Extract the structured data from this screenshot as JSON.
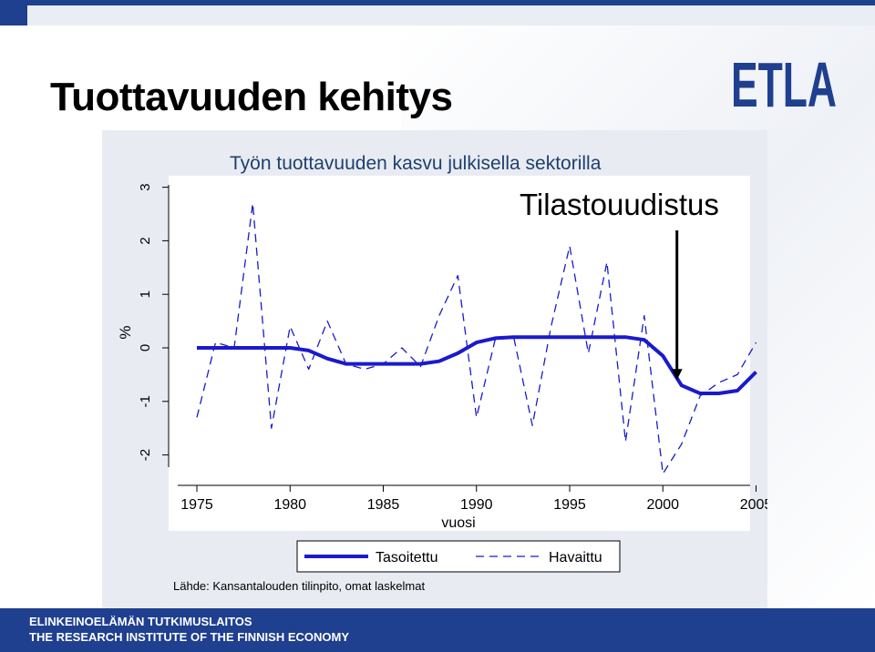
{
  "slide": {
    "title": "Tuottavuuden kehitys",
    "logo_text": "ETLA",
    "source": "Lähde: Kansantalouden tilinpito, omat laskelmat",
    "footer_line1": "ELINKEINOELÄMÄN TUTKIMUSLAITOS",
    "footer_line2": "THE RESEARCH INSTITUTE OF THE FINNISH ECONOMY"
  },
  "colors": {
    "brand": "#1f3f8f",
    "series": "#1a1acc",
    "panel": "#e8ecf2"
  },
  "chart_data": {
    "type": "line",
    "title": "Työn tuottavuuden kasvu julkisella sektorilla",
    "xlabel": "vuosi",
    "ylabel": "%",
    "xlim": [
      1974,
      2006
    ],
    "ylim": [
      -2.4,
      3.2
    ],
    "xticks": [
      1975,
      1980,
      1985,
      1990,
      1995,
      2000,
      2005
    ],
    "yticks": [
      -2,
      -1,
      0,
      1,
      2,
      3
    ],
    "grid": false,
    "legend_position": "bottom",
    "annotation": {
      "text": "Tilastouudistus",
      "arrow_year": 2001,
      "arrow_value": -0.6
    },
    "series": [
      {
        "name": "Tasoitettu",
        "style": "solid",
        "x": [
          1975,
          1976,
          1977,
          1978,
          1979,
          1980,
          1981,
          1982,
          1983,
          1984,
          1985,
          1986,
          1987,
          1988,
          1989,
          1990,
          1991,
          1992,
          1993,
          1994,
          1995,
          1996,
          1997,
          1998,
          1999,
          2000,
          2001,
          2002,
          2003,
          2004,
          2005
        ],
        "y": [
          0,
          0,
          0,
          0,
          0,
          0,
          -0.05,
          -0.2,
          -0.3,
          -0.3,
          -0.3,
          -0.3,
          -0.3,
          -0.25,
          -0.1,
          0.1,
          0.18,
          0.2,
          0.2,
          0.2,
          0.2,
          0.2,
          0.2,
          0.2,
          0.15,
          -0.15,
          -0.7,
          -0.85,
          -0.85,
          -0.8,
          -0.45
        ]
      },
      {
        "name": "Havaittu",
        "style": "dashed",
        "x": [
          1975,
          1976,
          1977,
          1978,
          1979,
          1980,
          1981,
          1982,
          1983,
          1984,
          1985,
          1986,
          1987,
          1988,
          1989,
          1990,
          1991,
          1992,
          1993,
          1994,
          1995,
          1996,
          1997,
          1998,
          1999,
          2000,
          2001,
          2002,
          2003,
          2004,
          2005
        ],
        "y": [
          -1.3,
          0.1,
          0,
          2.7,
          -1.5,
          0.4,
          -0.4,
          0.5,
          -0.3,
          -0.4,
          -0.3,
          0,
          -0.35,
          0.6,
          1.35,
          -1.3,
          0.15,
          0.2,
          -1.45,
          0.4,
          1.9,
          -0.1,
          1.6,
          -1.75,
          0.6,
          -2.35,
          -1.8,
          -0.9,
          -0.65,
          -0.5,
          0.1
        ]
      }
    ]
  }
}
